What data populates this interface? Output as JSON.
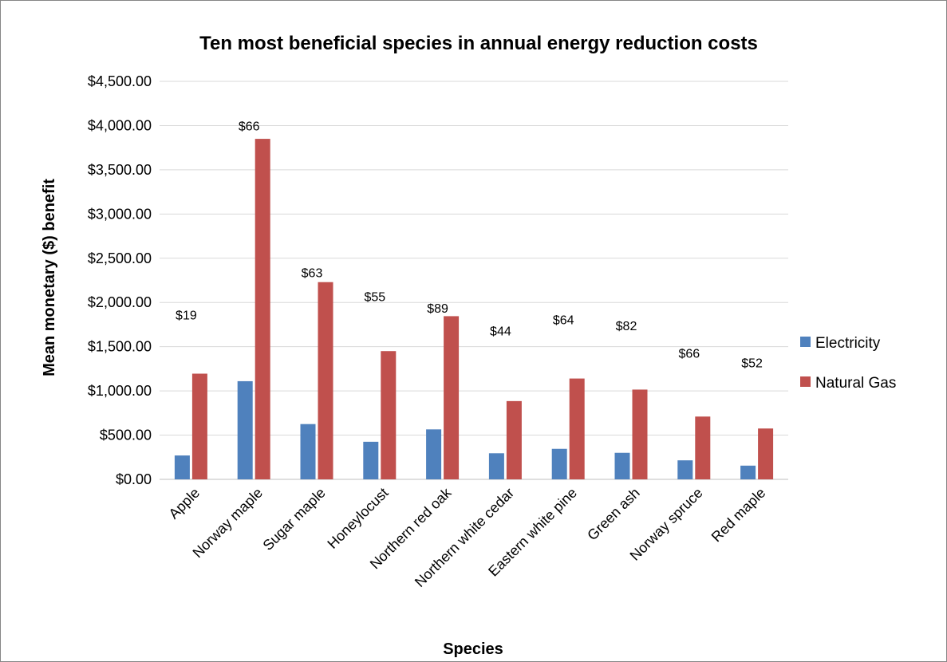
{
  "chart_data": {
    "type": "bar",
    "title": "Ten most beneficial species in annual energy reduction costs",
    "xlabel": "Species",
    "ylabel": "Mean monetary ($) benefit",
    "categories": [
      "Apple",
      "Norway maple",
      "Sugar maple",
      "Honeylocust",
      "Northern red oak",
      "Northern white cedar",
      "Eastern white pine",
      "Green ash",
      "Norway spruce",
      "Red maple"
    ],
    "series": [
      {
        "name": "Electricity",
        "color": "#4F81BD",
        "values": [
          270,
          1110,
          625,
          425,
          565,
          295,
          345,
          300,
          215,
          155
        ]
      },
      {
        "name": "Natural Gas",
        "color": "#C0504D",
        "values": [
          1195,
          3850,
          2230,
          1450,
          1845,
          885,
          1140,
          1015,
          710,
          575
        ]
      }
    ],
    "annotations": [
      "$19",
      "$66",
      "$63",
      "$55",
      "$89",
      "$44",
      "$64",
      "$82",
      "$66",
      "$52"
    ],
    "annotation_values": [
      1860,
      4000,
      2340,
      2070,
      1940,
      1680,
      1810,
      1740,
      1430,
      1320
    ],
    "ylim": [
      0,
      4500
    ],
    "yticks": [
      0,
      500,
      1000,
      1500,
      2000,
      2500,
      3000,
      3500,
      4000,
      4500
    ],
    "ytick_labels": [
      "$0.00",
      "$500.00",
      "$1,000.00",
      "$1,500.00",
      "$2,000.00",
      "$2,500.00",
      "$3,000.00",
      "$3,500.00",
      "$4,000.00",
      "$4,500.00"
    ],
    "grid": true,
    "legend_position": "right",
    "gridline_color": "#D9D9D9"
  }
}
